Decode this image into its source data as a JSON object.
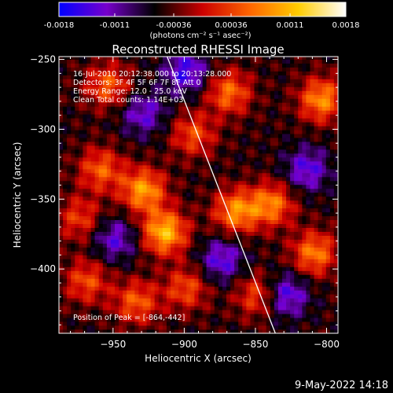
{
  "colorbar": {
    "ticks": [
      "-0.0018",
      "-0.0011",
      "-0.00036",
      "0.00036",
      "0.0011",
      "0.0018"
    ],
    "tick_values": [
      -0.0018,
      -0.0011,
      -0.00036,
      0.00036,
      0.0011,
      0.0018
    ],
    "range": [
      -0.0018,
      0.0018
    ],
    "unit_label": "(photons cm⁻² s⁻¹ asec⁻²)",
    "colormap": [
      "#0000ff",
      "#7700cc",
      "#000000",
      "#cc0000",
      "#ff6600",
      "#ffcc00",
      "#ffffff"
    ]
  },
  "chart_data": {
    "type": "heatmap",
    "title": "Reconstructed RHESSI Image",
    "xlabel": "Heliocentric X (arcsec)",
    "ylabel": "Heliocentric Y (arcsec)",
    "xlim": [
      -988,
      -792
    ],
    "ylim": [
      -446,
      -248
    ],
    "x_ticks": [
      -950,
      -900,
      -850,
      -800
    ],
    "x_tick_labels": [
      "−950",
      "−900",
      "−850",
      "−800"
    ],
    "y_ticks": [
      -250,
      -300,
      -350,
      -400
    ],
    "y_tick_labels": [
      "−250",
      "−300",
      "−350",
      "−400"
    ],
    "annotations": [
      "16-Jul-2010 20:12:38.000 to 20:13:28.000",
      "Detectors: 3F 4F 5F 6F 7F 8F Att 0",
      "Energy Range: 12.0 - 25.0 keV",
      "Clean    Total counts: 1.14E+03"
    ],
    "peak_label": "Position of Peak = [-864,-442]",
    "peak": [
      -864,
      -442
    ],
    "limb_line": [
      [
        -912,
        -248
      ],
      [
        -836,
        -446
      ]
    ],
    "grid": false,
    "bright_sources": [
      {
        "x": -930,
        "y": -345,
        "v": 0.0014
      },
      {
        "x": -915,
        "y": -375,
        "v": 0.0016
      },
      {
        "x": -960,
        "y": -330,
        "v": 0.001
      },
      {
        "x": -870,
        "y": -275,
        "v": 0.0011
      },
      {
        "x": -865,
        "y": -360,
        "v": 0.0013
      },
      {
        "x": -840,
        "y": -355,
        "v": 0.0012
      },
      {
        "x": -805,
        "y": -280,
        "v": 0.0013
      },
      {
        "x": -810,
        "y": -390,
        "v": 0.0012
      },
      {
        "x": -970,
        "y": -410,
        "v": 0.0009
      },
      {
        "x": -955,
        "y": -270,
        "v": 0.001
      },
      {
        "x": -895,
        "y": -305,
        "v": 0.0009
      },
      {
        "x": -935,
        "y": -425,
        "v": 0.001
      },
      {
        "x": -850,
        "y": -420,
        "v": 0.0009
      },
      {
        "x": -975,
        "y": -365,
        "v": 0.0008
      },
      {
        "x": -900,
        "y": -415,
        "v": 0.0009
      }
    ],
    "dim_regions": [
      {
        "x": -900,
        "y": -260,
        "v": -0.001
      },
      {
        "x": -875,
        "y": -395,
        "v": -0.0009
      },
      {
        "x": -830,
        "y": -420,
        "v": -0.001
      },
      {
        "x": -930,
        "y": -290,
        "v": -0.0008
      },
      {
        "x": -815,
        "y": -330,
        "v": -0.0009
      },
      {
        "x": -950,
        "y": -380,
        "v": -0.0008
      }
    ]
  },
  "footer": {
    "timestamp": "9-May-2022 14:18"
  }
}
